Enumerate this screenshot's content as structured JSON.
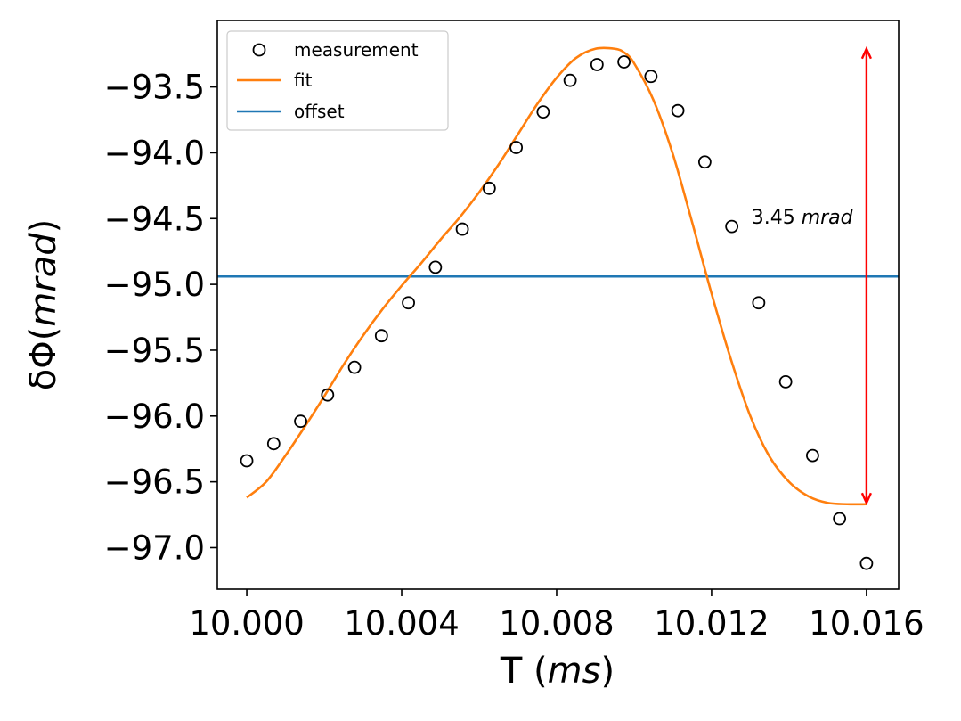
{
  "chart_data": {
    "type": "scatter",
    "xlabel_prefix": "T (",
    "xlabel_unit": "ms",
    "xlabel_suffix": ")",
    "ylabel_prefix": "δΦ(",
    "ylabel_unit": "mrad",
    "ylabel_suffix": ")",
    "xlim": [
      9.99924,
      10.01683
    ],
    "ylim": [
      -97.315,
      -92.995
    ],
    "x_ticks": [
      10.0,
      10.004,
      10.008,
      10.012,
      10.016
    ],
    "x_tick_labels": [
      "10.000",
      "10.004",
      "10.008",
      "10.012",
      "10.016"
    ],
    "y_ticks": [
      -93.5,
      -94.0,
      -94.5,
      -95.0,
      -95.5,
      -96.0,
      -96.5,
      -97.0
    ],
    "y_tick_labels": [
      "−93.5",
      "−94.0",
      "−94.5",
      "−95.0",
      "−95.5",
      "−96.0",
      "−96.5",
      "−97.0"
    ],
    "grid": false,
    "legend_position": "top-left",
    "series": [
      {
        "name": "measurement",
        "kind": "markers",
        "color": "#000000",
        "x": [
          10.0,
          10.000696,
          10.001391,
          10.002087,
          10.002783,
          10.003478,
          10.004174,
          10.00487,
          10.005565,
          10.006261,
          10.006957,
          10.007652,
          10.008348,
          10.009043,
          10.009739,
          10.010435,
          10.01113,
          10.011826,
          10.012522,
          10.013217,
          10.013913,
          10.014609,
          10.015304,
          10.016
        ],
        "y": [
          -96.34,
          -96.21,
          -96.04,
          -95.84,
          -95.63,
          -95.39,
          -95.14,
          -94.87,
          -94.58,
          -94.27,
          -93.96,
          -93.69,
          -93.45,
          -93.33,
          -93.31,
          -93.42,
          -93.68,
          -94.07,
          -94.56,
          -95.14,
          -95.74,
          -96.3,
          -96.78,
          -97.12
        ]
      },
      {
        "name": "fit",
        "kind": "line",
        "color": "#ff7f0e",
        "x": [
          10.0,
          10.0005,
          10.001,
          10.0015,
          10.002,
          10.0025,
          10.003,
          10.0035,
          10.004,
          10.0045,
          10.005,
          10.0055,
          10.006,
          10.0065,
          10.007,
          10.0075,
          10.008,
          10.0085,
          10.009,
          10.0095,
          10.00975,
          10.01,
          10.0105,
          10.011,
          10.0115,
          10.012,
          10.0125,
          10.013,
          10.0135,
          10.014,
          10.0145,
          10.015,
          10.0155,
          10.016
        ],
        "y": [
          -96.62,
          -96.5,
          -96.3,
          -96.08,
          -95.85,
          -95.61,
          -95.39,
          -95.19,
          -95.01,
          -94.84,
          -94.66,
          -94.49,
          -94.3,
          -94.09,
          -93.86,
          -93.63,
          -93.43,
          -93.28,
          -93.21,
          -93.21,
          -93.24,
          -93.32,
          -93.6,
          -94.01,
          -94.53,
          -95.07,
          -95.57,
          -96.0,
          -96.31,
          -96.5,
          -96.61,
          -96.66,
          -96.67,
          -96.67
        ]
      },
      {
        "name": "offset",
        "kind": "hline",
        "color": "#1f77b4",
        "y": -94.94
      }
    ],
    "arrow": {
      "x": 10.016,
      "y_top": -93.21,
      "y_bottom": -96.66,
      "color": "#ff0000"
    },
    "annotation": {
      "value": "3.45 ",
      "unit": "mrad",
      "x": 10.0128,
      "y": -94.56
    }
  }
}
